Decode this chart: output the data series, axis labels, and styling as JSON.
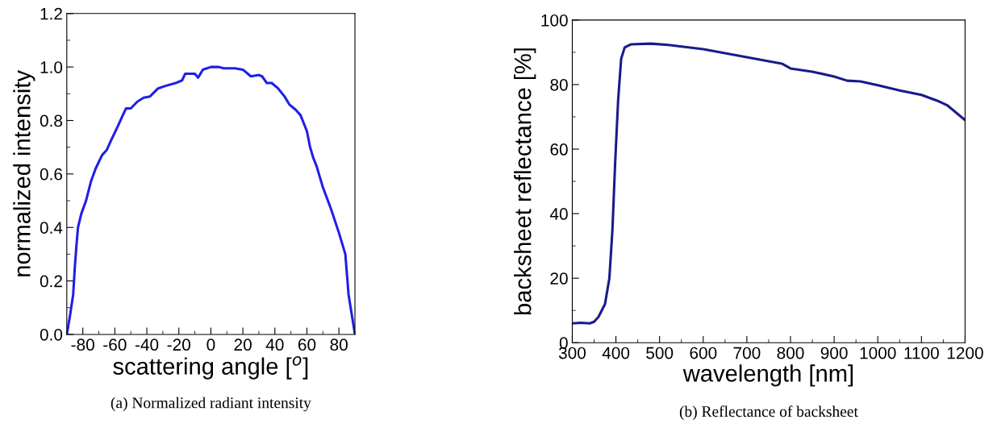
{
  "chart_data": [
    {
      "type": "line",
      "title": "(a) Normalized radiant intensity",
      "xlabel": "scattering angle [$^{o}$]",
      "ylabel": "normalized intensity",
      "x": [
        -90,
        -88,
        -86,
        -85,
        -84,
        -83,
        -81,
        -78,
        -75,
        -72,
        -68,
        -65,
        -62,
        -58,
        -55,
        -53,
        -50,
        -46,
        -42,
        -38,
        -33,
        -28,
        -22,
        -18,
        -16,
        -12,
        -10,
        -8,
        -5,
        0,
        5,
        8,
        15,
        20,
        25,
        30,
        32,
        35,
        38,
        42,
        46,
        49,
        53,
        56,
        60,
        62,
        64,
        66,
        70,
        75,
        80,
        84,
        86,
        90
      ],
      "series": [
        {
          "color": "#1f1fe6",
          "values": [
            0,
            0.07,
            0.15,
            0.25,
            0.33,
            0.4,
            0.45,
            0.5,
            0.57,
            0.62,
            0.67,
            0.69,
            0.73,
            0.78,
            0.82,
            0.845,
            0.845,
            0.87,
            0.885,
            0.89,
            0.92,
            0.93,
            0.94,
            0.95,
            0.975,
            0.975,
            0.975,
            0.96,
            0.99,
            1.0,
            1.0,
            0.995,
            0.995,
            0.99,
            0.965,
            0.97,
            0.965,
            0.94,
            0.94,
            0.92,
            0.89,
            0.86,
            0.84,
            0.82,
            0.76,
            0.7,
            0.66,
            0.63,
            0.55,
            0.47,
            0.38,
            0.3,
            0.15,
            0
          ]
        }
      ],
      "xlim": [
        -90,
        90
      ],
      "xticks": [
        -80,
        -60,
        -40,
        -20,
        0,
        20,
        40,
        60,
        80
      ],
      "ylim": [
        0,
        1.2
      ],
      "yticks": [
        {
          "value": 0,
          "label": "0.0"
        },
        {
          "value": 0.2,
          "label": "0.2"
        },
        {
          "value": 0.4,
          "label": "0.4"
        },
        {
          "value": 0.6,
          "label": "0.6"
        },
        {
          "value": 0.8,
          "label": "0.8"
        },
        {
          "value": 1.0,
          "label": "1.0"
        },
        {
          "value": 1.2,
          "label": "1.2"
        }
      ],
      "grid": false,
      "legend": false
    },
    {
      "type": "line",
      "title": "(b) Reflectance of backsheet",
      "xlabel": "wavelength [nm]",
      "ylabel": "backsheet reflectance [%]",
      "x": [
        300,
        320,
        340,
        350,
        360,
        375,
        385,
        392,
        398,
        405,
        412,
        420,
        435,
        480,
        520,
        600,
        700,
        780,
        800,
        850,
        900,
        930,
        960,
        1000,
        1050,
        1100,
        1140,
        1160,
        1200
      ],
      "series": [
        {
          "color": "#1a1a8c",
          "values": [
            6,
            6.2,
            6,
            6.5,
            8,
            12,
            20,
            35,
            55,
            75,
            88,
            91.5,
            92.5,
            92.7,
            92.3,
            91,
            88.5,
            86.5,
            85,
            84,
            82.5,
            81.2,
            81,
            79.8,
            78.2,
            76.8,
            74.8,
            73.5,
            69
          ]
        }
      ],
      "xlim": [
        300,
        1200
      ],
      "xticks": [
        300,
        400,
        500,
        600,
        700,
        800,
        900,
        1000,
        1100,
        1200
      ],
      "ylim": [
        0,
        100
      ],
      "yticks": [
        0,
        20,
        40,
        60,
        80,
        100
      ],
      "grid": false,
      "legend": false
    }
  ]
}
